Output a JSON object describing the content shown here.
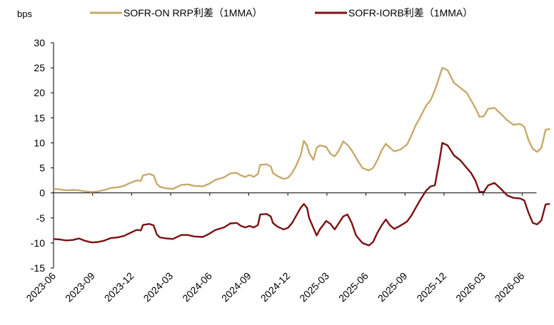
{
  "chart_data": {
    "type": "line",
    "unit_label": "bps",
    "ylim": [
      -15,
      30
    ],
    "y_ticks": [
      30,
      25,
      20,
      15,
      10,
      5,
      0,
      -5,
      -10,
      -15
    ],
    "x_ticks": [
      "2023-06",
      "2023-09",
      "2023-12",
      "2024-03",
      "2024-06",
      "2024-09",
      "2024-12",
      "2025-03",
      "2025-06",
      "2025-09",
      "2025-12",
      "2026-03",
      "2026-06"
    ],
    "grid": false,
    "legend_position": "top",
    "series": [
      {
        "name": "SOFR-ON RRP利差（1MMA）",
        "color": "#C8A96A",
        "points": [
          [
            0,
            0.8
          ],
          [
            0.3,
            0.7
          ],
          [
            0.6,
            0.5
          ],
          [
            0.9,
            0.6
          ],
          [
            1.2,
            0.5
          ],
          [
            1.5,
            0.3
          ],
          [
            1.8,
            0.2
          ],
          [
            2.1,
            0.3
          ],
          [
            2.4,
            0.6
          ],
          [
            2.7,
            1.0
          ],
          [
            3.0,
            1.1
          ],
          [
            3.3,
            1.4
          ],
          [
            3.6,
            2.0
          ],
          [
            3.9,
            2.5
          ],
          [
            4.1,
            2.4
          ],
          [
            4.2,
            3.5
          ],
          [
            4.5,
            3.8
          ],
          [
            4.7,
            3.5
          ],
          [
            4.85,
            1.8
          ],
          [
            5.0,
            1.2
          ],
          [
            5.3,
            0.9
          ],
          [
            5.6,
            0.8
          ],
          [
            6.0,
            1.6
          ],
          [
            6.3,
            1.7
          ],
          [
            6.6,
            1.4
          ],
          [
            7.0,
            1.3
          ],
          [
            7.3,
            1.8
          ],
          [
            7.6,
            2.6
          ],
          [
            8.0,
            3.1
          ],
          [
            8.3,
            3.9
          ],
          [
            8.6,
            4.0
          ],
          [
            8.8,
            3.5
          ],
          [
            9.0,
            3.2
          ],
          [
            9.2,
            3.6
          ],
          [
            9.4,
            3.2
          ],
          [
            9.6,
            3.8
          ],
          [
            9.7,
            5.6
          ],
          [
            10.0,
            5.7
          ],
          [
            10.2,
            5.3
          ],
          [
            10.3,
            4.0
          ],
          [
            10.5,
            3.4
          ],
          [
            10.8,
            2.8
          ],
          [
            11.0,
            3.0
          ],
          [
            11.2,
            4.0
          ],
          [
            11.4,
            5.5
          ],
          [
            11.6,
            7.5
          ],
          [
            11.75,
            10.4
          ],
          [
            11.9,
            9.5
          ],
          [
            12.0,
            8.0
          ],
          [
            12.2,
            6.6
          ],
          [
            12.35,
            9.0
          ],
          [
            12.5,
            9.5
          ],
          [
            12.8,
            9.2
          ],
          [
            13.0,
            7.8
          ],
          [
            13.2,
            7.3
          ],
          [
            13.4,
            8.5
          ],
          [
            13.6,
            10.3
          ],
          [
            13.8,
            9.6
          ],
          [
            14.0,
            8.5
          ],
          [
            14.2,
            7.0
          ],
          [
            14.5,
            5.0
          ],
          [
            14.8,
            4.5
          ],
          [
            15.0,
            5.0
          ],
          [
            15.2,
            6.5
          ],
          [
            15.4,
            8.5
          ],
          [
            15.6,
            9.8
          ],
          [
            15.8,
            9.0
          ],
          [
            16.0,
            8.3
          ],
          [
            16.3,
            8.7
          ],
          [
            16.6,
            9.7
          ],
          [
            16.8,
            11.5
          ],
          [
            17.0,
            13.5
          ],
          [
            17.2,
            15.0
          ],
          [
            17.5,
            17.5
          ],
          [
            17.7,
            18.5
          ],
          [
            17.9,
            20.5
          ],
          [
            18.1,
            23.0
          ],
          [
            18.25,
            25.0
          ],
          [
            18.5,
            24.5
          ],
          [
            18.8,
            22.0
          ],
          [
            19.1,
            21.0
          ],
          [
            19.4,
            20.0
          ],
          [
            19.6,
            18.5
          ],
          [
            19.8,
            17.0
          ],
          [
            20.0,
            15.2
          ],
          [
            20.2,
            15.3
          ],
          [
            20.4,
            16.8
          ],
          [
            20.7,
            17.0
          ],
          [
            21.0,
            15.8
          ],
          [
            21.3,
            14.5
          ],
          [
            21.6,
            13.6
          ],
          [
            21.9,
            13.8
          ],
          [
            22.1,
            13.2
          ],
          [
            22.3,
            10.5
          ],
          [
            22.5,
            8.8
          ],
          [
            22.7,
            8.2
          ],
          [
            22.9,
            9.0
          ],
          [
            23.1,
            12.6
          ],
          [
            23.3,
            12.8
          ]
        ]
      },
      {
        "name": "SOFR-IORB利差（1MMA）",
        "color": "#7B1113",
        "points": [
          [
            0,
            -9.2
          ],
          [
            0.3,
            -9.3
          ],
          [
            0.6,
            -9.5
          ],
          [
            0.9,
            -9.4
          ],
          [
            1.2,
            -9.1
          ],
          [
            1.5,
            -9.6
          ],
          [
            1.8,
            -9.9
          ],
          [
            2.1,
            -9.8
          ],
          [
            2.4,
            -9.5
          ],
          [
            2.7,
            -9.0
          ],
          [
            3.0,
            -8.9
          ],
          [
            3.3,
            -8.6
          ],
          [
            3.6,
            -8.0
          ],
          [
            3.9,
            -7.4
          ],
          [
            4.1,
            -7.5
          ],
          [
            4.2,
            -6.4
          ],
          [
            4.5,
            -6.2
          ],
          [
            4.7,
            -6.5
          ],
          [
            4.85,
            -8.3
          ],
          [
            5.0,
            -8.9
          ],
          [
            5.3,
            -9.1
          ],
          [
            5.6,
            -9.2
          ],
          [
            6.0,
            -8.4
          ],
          [
            6.3,
            -8.4
          ],
          [
            6.6,
            -8.7
          ],
          [
            7.0,
            -8.8
          ],
          [
            7.3,
            -8.2
          ],
          [
            7.6,
            -7.4
          ],
          [
            8.0,
            -6.9
          ],
          [
            8.3,
            -6.1
          ],
          [
            8.6,
            -6.0
          ],
          [
            8.8,
            -6.6
          ],
          [
            9.0,
            -6.9
          ],
          [
            9.2,
            -6.6
          ],
          [
            9.4,
            -6.9
          ],
          [
            9.6,
            -6.4
          ],
          [
            9.7,
            -4.3
          ],
          [
            10.0,
            -4.2
          ],
          [
            10.2,
            -4.7
          ],
          [
            10.3,
            -6.0
          ],
          [
            10.5,
            -6.7
          ],
          [
            10.8,
            -7.3
          ],
          [
            11.0,
            -7.0
          ],
          [
            11.2,
            -6.0
          ],
          [
            11.4,
            -4.5
          ],
          [
            11.6,
            -3.0
          ],
          [
            11.75,
            -2.2
          ],
          [
            11.9,
            -3.0
          ],
          [
            12.0,
            -5.0
          ],
          [
            12.2,
            -7.0
          ],
          [
            12.35,
            -8.5
          ],
          [
            12.5,
            -7.3
          ],
          [
            12.8,
            -5.6
          ],
          [
            13.0,
            -6.2
          ],
          [
            13.2,
            -7.3
          ],
          [
            13.4,
            -6.0
          ],
          [
            13.6,
            -4.7
          ],
          [
            13.8,
            -4.3
          ],
          [
            14.0,
            -6.0
          ],
          [
            14.2,
            -8.5
          ],
          [
            14.5,
            -10.0
          ],
          [
            14.8,
            -10.5
          ],
          [
            15.0,
            -9.8
          ],
          [
            15.2,
            -8.0
          ],
          [
            15.4,
            -6.5
          ],
          [
            15.6,
            -5.3
          ],
          [
            15.8,
            -6.5
          ],
          [
            16.0,
            -7.2
          ],
          [
            16.3,
            -6.5
          ],
          [
            16.6,
            -5.7
          ],
          [
            16.8,
            -4.5
          ],
          [
            17.0,
            -3.0
          ],
          [
            17.2,
            -1.5
          ],
          [
            17.5,
            0.5
          ],
          [
            17.7,
            1.3
          ],
          [
            17.9,
            1.5
          ],
          [
            18.1,
            6.0
          ],
          [
            18.25,
            10.0
          ],
          [
            18.5,
            9.5
          ],
          [
            18.8,
            7.5
          ],
          [
            19.1,
            6.5
          ],
          [
            19.4,
            5.0
          ],
          [
            19.6,
            4.0
          ],
          [
            19.8,
            2.5
          ],
          [
            20.0,
            0.2
          ],
          [
            20.2,
            0.2
          ],
          [
            20.4,
            1.5
          ],
          [
            20.7,
            2.0
          ],
          [
            21.0,
            0.8
          ],
          [
            21.3,
            -0.5
          ],
          [
            21.6,
            -1.0
          ],
          [
            21.9,
            -1.1
          ],
          [
            22.1,
            -1.5
          ],
          [
            22.3,
            -4.0
          ],
          [
            22.5,
            -6.0
          ],
          [
            22.7,
            -6.3
          ],
          [
            22.9,
            -5.5
          ],
          [
            23.1,
            -2.3
          ],
          [
            23.3,
            -2.2
          ]
        ]
      }
    ]
  }
}
